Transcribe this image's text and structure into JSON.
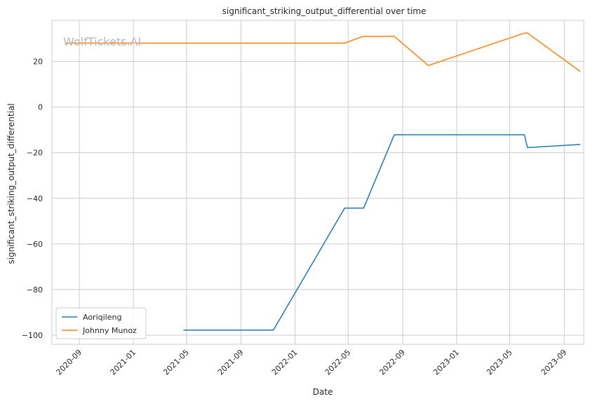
{
  "chart_data": {
    "type": "line",
    "title": "significant_striking_output_differential over time",
    "xlabel": "Date",
    "ylabel": "significant_striking_output_differential",
    "watermark": "WolfTickets.AI",
    "x_ticks": [
      "2020-09",
      "2021-01",
      "2021-05",
      "2021-09",
      "2022-01",
      "2022-05",
      "2022-09",
      "2023-01",
      "2023-05",
      "2023-09"
    ],
    "y_ticks": [
      20,
      0,
      -20,
      -40,
      -60,
      -80,
      -100
    ],
    "y_tick_labels": [
      "20",
      "0",
      "−20",
      "−40",
      "−60",
      "−80",
      "−100"
    ],
    "xlim": [
      "2020-07-01",
      "2023-10-15"
    ],
    "ylim": [
      -104,
      38
    ],
    "grid": true,
    "legend_position": "lower-left",
    "series": [
      {
        "name": "Aoriqileng",
        "color": "#1f77b4",
        "points": [
          [
            "2021-04-24",
            -97.8
          ],
          [
            "2021-11-13",
            -97.8
          ],
          [
            "2022-04-23",
            -44.3
          ],
          [
            "2022-06-05",
            -44.3
          ],
          [
            "2022-08-13",
            -12.2
          ],
          [
            "2023-06-03",
            -12.2
          ],
          [
            "2023-06-10",
            -17.8
          ],
          [
            "2023-10-07",
            -16.4
          ]
        ]
      },
      {
        "name": "Johnny Munoz",
        "color": "#ff7f0e",
        "points": [
          [
            "2020-08-01",
            28.0
          ],
          [
            "2022-04-23",
            28.0
          ],
          [
            "2022-06-04",
            31.0
          ],
          [
            "2022-08-13",
            31.0
          ],
          [
            "2022-10-29",
            18.2
          ],
          [
            "2023-06-03",
            32.4
          ],
          [
            "2023-06-10",
            32.4
          ],
          [
            "2023-10-07",
            15.6
          ]
        ]
      }
    ]
  }
}
